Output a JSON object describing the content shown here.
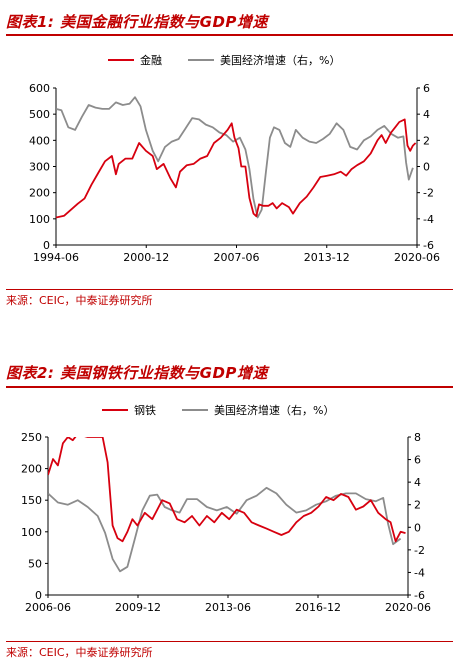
{
  "figures": [
    {
      "title": "图表1: 美国金融行业指数与GDP增速",
      "source": "来源：CEIC，中泰证券研究所"
    },
    {
      "title": "图表2: 美国钢铁行业指数与GDP增速",
      "source": "来源：CEIC，中泰证券研究所"
    }
  ],
  "colors": {
    "index": "#d7000f",
    "gdp": "#8c8c8c",
    "accent": "#c00000"
  },
  "chart_data": [
    {
      "type": "line",
      "xlabels": [
        "1994-06",
        "2000-12",
        "2007-06",
        "2013-12",
        "2020-06"
      ],
      "xlim": [
        1994.4,
        2020.9
      ],
      "ylim_left": [
        0,
        600
      ],
      "yticks_left": [
        0,
        100,
        200,
        300,
        400,
        500,
        600
      ],
      "ylim_right": [
        -6,
        6
      ],
      "yticks_right": [
        -6,
        -4,
        -2,
        0,
        2,
        4,
        6
      ],
      "legend": [
        "金融",
        "美国经济增速（右，%）"
      ],
      "series": [
        {
          "name": "金融",
          "axis": "left",
          "x": [
            1994.4,
            1995.0,
            1995.5,
            1996.0,
            1996.5,
            1997.0,
            1997.5,
            1998.0,
            1998.5,
            1998.8,
            1999.0,
            1999.5,
            2000.0,
            2000.5,
            2001.0,
            2001.5,
            2001.8,
            2002.3,
            2002.8,
            2003.2,
            2003.5,
            2004.0,
            2004.5,
            2005.0,
            2005.5,
            2006.0,
            2006.5,
            2007.0,
            2007.3,
            2007.5,
            2007.8,
            2008.0,
            2008.3,
            2008.6,
            2008.9,
            2009.1,
            2009.3,
            2009.6,
            2010.0,
            2010.3,
            2010.6,
            2011.0,
            2011.5,
            2011.8,
            2012.3,
            2012.8,
            2013.3,
            2013.8,
            2014.3,
            2014.8,
            2015.3,
            2015.7,
            2016.1,
            2016.5,
            2017.0,
            2017.5,
            2018.0,
            2018.3,
            2018.6,
            2019.0,
            2019.3,
            2019.6,
            2020.0,
            2020.2,
            2020.4,
            2020.6,
            2020.8
          ],
          "y": [
            105,
            112,
            135,
            158,
            178,
            230,
            275,
            320,
            340,
            270,
            310,
            330,
            330,
            390,
            360,
            340,
            290,
            310,
            255,
            220,
            280,
            305,
            310,
            330,
            340,
            390,
            410,
            440,
            465,
            410,
            370,
            300,
            300,
            180,
            120,
            110,
            155,
            150,
            150,
            160,
            140,
            160,
            145,
            120,
            160,
            185,
            220,
            260,
            265,
            270,
            280,
            265,
            290,
            305,
            320,
            350,
            400,
            420,
            390,
            430,
            450,
            470,
            480,
            380,
            360,
            380,
            390
          ]
        },
        {
          "name": "美国经济增速（右，%）",
          "axis": "right",
          "x": [
            1994.4,
            1994.8,
            1995.3,
            1995.8,
            1996.3,
            1996.8,
            1997.3,
            1997.8,
            1998.3,
            1998.8,
            1999.3,
            1999.8,
            2000.2,
            2000.6,
            2001.0,
            2001.5,
            2001.9,
            2002.4,
            2002.9,
            2003.4,
            2003.9,
            2004.4,
            2004.9,
            2005.4,
            2005.9,
            2006.4,
            2006.9,
            2007.4,
            2007.9,
            2008.3,
            2008.6,
            2008.9,
            2009.2,
            2009.5,
            2009.8,
            2010.1,
            2010.4,
            2010.8,
            2011.2,
            2011.6,
            2012.0,
            2012.5,
            2013.0,
            2013.5,
            2014.0,
            2014.5,
            2015.0,
            2015.5,
            2016.0,
            2016.5,
            2017.0,
            2017.5,
            2018.0,
            2018.5,
            2019.0,
            2019.5,
            2019.9,
            2020.1,
            2020.3,
            2020.6
          ],
          "y": [
            4.4,
            4.3,
            3.0,
            2.8,
            3.8,
            4.7,
            4.5,
            4.4,
            4.4,
            4.9,
            4.7,
            4.8,
            5.3,
            4.6,
            2.8,
            1.2,
            0.4,
            1.5,
            1.9,
            2.1,
            2.9,
            3.7,
            3.6,
            3.2,
            3.0,
            2.6,
            2.4,
            1.9,
            2.2,
            1.3,
            -0.2,
            -2.5,
            -3.9,
            -3.3,
            -0.5,
            2.2,
            3.0,
            2.8,
            1.8,
            1.5,
            2.8,
            2.2,
            1.9,
            1.8,
            2.1,
            2.5,
            3.3,
            2.8,
            1.5,
            1.3,
            2.0,
            2.3,
            2.8,
            3.1,
            2.5,
            2.2,
            2.3,
            0.3,
            -1.0,
            -0.1
          ]
        }
      ]
    },
    {
      "type": "line",
      "xlabels": [
        "2006-06",
        "2009-12",
        "2013-06",
        "2016-12",
        "2020-06"
      ],
      "xlim": [
        2006.4,
        2020.9
      ],
      "ylim_left": [
        0,
        250
      ],
      "yticks_left": [
        0,
        50,
        100,
        150,
        200,
        250
      ],
      "ylim_right": [
        -6,
        8
      ],
      "yticks_right": [
        -6,
        -4,
        -2,
        0,
        2,
        4,
        6,
        8
      ],
      "legend": [
        "钢铁",
        "美国经济增速（右，%）"
      ],
      "series": [
        {
          "name": "钢铁",
          "axis": "left",
          "x": [
            2006.4,
            2006.6,
            2006.8,
            2007.0,
            2007.2,
            2007.4,
            2007.6,
            2007.8,
            2008.0,
            2008.2,
            2008.4,
            2008.6,
            2008.8,
            2009.0,
            2009.2,
            2009.4,
            2009.6,
            2009.8,
            2010.0,
            2010.3,
            2010.6,
            2011.0,
            2011.3,
            2011.6,
            2011.9,
            2012.2,
            2012.5,
            2012.8,
            2013.1,
            2013.4,
            2013.7,
            2014.0,
            2014.3,
            2014.6,
            2014.9,
            2015.2,
            2015.5,
            2015.8,
            2016.1,
            2016.4,
            2016.7,
            2017.0,
            2017.3,
            2017.6,
            2017.9,
            2018.2,
            2018.5,
            2018.8,
            2019.1,
            2019.4,
            2019.7,
            2020.0,
            2020.2,
            2020.4,
            2020.6,
            2020.8
          ],
          "y": [
            190,
            215,
            205,
            240,
            250,
            245,
            255,
            252,
            250,
            250,
            250,
            250,
            210,
            110,
            90,
            85,
            100,
            120,
            110,
            130,
            120,
            150,
            145,
            120,
            115,
            125,
            110,
            125,
            115,
            130,
            120,
            135,
            130,
            115,
            110,
            105,
            100,
            95,
            100,
            115,
            125,
            130,
            140,
            155,
            150,
            160,
            155,
            135,
            140,
            150,
            130,
            120,
            115,
            85,
            100,
            98
          ]
        },
        {
          "name": "美国经济增速（右，%）",
          "axis": "right",
          "x": [
            2006.4,
            2006.8,
            2007.2,
            2007.6,
            2008.0,
            2008.4,
            2008.7,
            2009.0,
            2009.3,
            2009.6,
            2009.9,
            2010.2,
            2010.5,
            2010.8,
            2011.1,
            2011.4,
            2011.7,
            2012.0,
            2012.4,
            2012.8,
            2013.2,
            2013.6,
            2014.0,
            2014.4,
            2014.8,
            2015.2,
            2015.6,
            2016.0,
            2016.4,
            2016.8,
            2017.2,
            2017.6,
            2018.0,
            2018.4,
            2018.8,
            2019.2,
            2019.6,
            2019.9,
            2020.1,
            2020.3,
            2020.6
          ],
          "y": [
            3.0,
            2.2,
            2.0,
            2.4,
            1.8,
            1.0,
            -0.5,
            -2.8,
            -3.9,
            -3.5,
            -1.0,
            1.5,
            2.8,
            2.9,
            1.8,
            1.5,
            1.3,
            2.5,
            2.5,
            1.8,
            1.5,
            1.8,
            1.2,
            2.4,
            2.8,
            3.5,
            3.0,
            2.0,
            1.3,
            1.5,
            2.0,
            2.3,
            2.8,
            3.0,
            3.0,
            2.5,
            2.3,
            2.6,
            0.3,
            -1.5,
            -1.0
          ]
        }
      ]
    }
  ]
}
